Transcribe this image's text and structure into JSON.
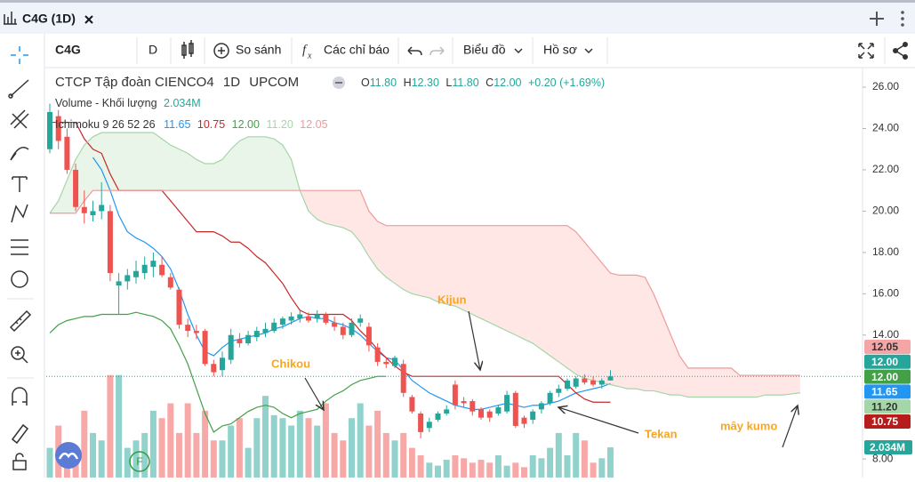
{
  "tab": {
    "title": "C4G (1D)"
  },
  "toolbar": {
    "symbol": "C4G",
    "interval": "D",
    "compare": "So sánh",
    "indicators": "Các chỉ báo",
    "chart_type": "Biểu đồ",
    "profile": "Hồ sơ"
  },
  "legend": {
    "name": "CTCP Tập đoàn CIENCO4",
    "interval": "1D",
    "exchange": "UPCOM",
    "o_label": "O",
    "open": "11.80",
    "h_label": "H",
    "high": "12.30",
    "l_label": "L",
    "low": "11.80",
    "c_label": "C",
    "close": "12.00",
    "change": "+0.20 (+1.69%)",
    "volume_name": "Volume - Khối lượng",
    "volume_value": "2.034M",
    "ichimoku_name": "Ichimoku 9 26 52 26",
    "ichimoku_values": [
      "11.65",
      "10.75",
      "12.00",
      "11.20",
      "12.05"
    ]
  },
  "badge": "F",
  "chart_data": {
    "type": "candlestick",
    "ylim": [
      7.1,
      26.95
    ],
    "yticks": [
      {
        "value": 8,
        "label": "8.00"
      },
      {
        "value": 14,
        "label": "14.00"
      },
      {
        "value": 16,
        "label": "16.00"
      },
      {
        "value": 18,
        "label": "18.00"
      },
      {
        "value": 20,
        "label": "20.00"
      },
      {
        "value": 22,
        "label": "22.00"
      },
      {
        "value": 24,
        "label": "24.00"
      },
      {
        "value": 26,
        "label": "26.00"
      }
    ],
    "colors": {
      "up": "#26a69a",
      "down": "#ef5350"
    },
    "candles": [
      [
        23.0,
        25.2,
        22.8,
        24.8
      ],
      [
        24.6,
        24.9,
        23.0,
        23.4
      ],
      [
        23.6,
        24.0,
        21.8,
        22.0
      ],
      [
        22.0,
        22.3,
        20.0,
        20.2
      ],
      [
        20.2,
        21.0,
        19.4,
        19.9
      ],
      [
        19.8,
        20.5,
        19.5,
        20.0
      ],
      [
        20.0,
        21.4,
        19.6,
        20.3
      ],
      [
        20.0,
        20.3,
        16.6,
        17.0
      ],
      [
        16.4,
        17.0,
        15.0,
        16.6
      ],
      [
        16.6,
        17.2,
        16.2,
        16.9
      ],
      [
        16.8,
        17.6,
        16.5,
        17.1
      ],
      [
        17.0,
        17.8,
        16.7,
        17.4
      ],
      [
        17.3,
        18.0,
        16.8,
        17.6
      ],
      [
        17.4,
        17.8,
        16.8,
        16.9
      ],
      [
        16.8,
        17.0,
        16.2,
        16.3
      ],
      [
        16.2,
        16.3,
        14.3,
        14.5
      ],
      [
        14.5,
        14.8,
        13.9,
        14.2
      ],
      [
        14.2,
        14.5,
        13.8,
        14.1
      ],
      [
        14.2,
        14.3,
        12.5,
        12.6
      ],
      [
        12.6,
        12.8,
        12.0,
        12.2
      ],
      [
        12.3,
        13.2,
        12.0,
        12.9
      ],
      [
        12.8,
        14.3,
        12.6,
        14.0
      ],
      [
        13.8,
        14.1,
        13.4,
        13.6
      ],
      [
        13.6,
        14.2,
        13.5,
        14.0
      ],
      [
        13.9,
        14.4,
        13.7,
        14.2
      ],
      [
        14.1,
        14.6,
        13.9,
        14.3
      ],
      [
        14.2,
        14.8,
        14.1,
        14.6
      ],
      [
        14.5,
        14.9,
        14.3,
        14.8
      ],
      [
        14.7,
        15.1,
        14.5,
        14.9
      ],
      [
        14.8,
        15.2,
        14.6,
        15.0
      ],
      [
        14.9,
        15.1,
        14.6,
        14.7
      ],
      [
        14.8,
        15.2,
        14.6,
        15.0
      ],
      [
        15.0,
        15.1,
        14.5,
        14.6
      ],
      [
        14.6,
        14.9,
        14.2,
        14.4
      ],
      [
        14.4,
        14.6,
        13.8,
        14.0
      ],
      [
        14.0,
        14.8,
        13.9,
        14.6
      ],
      [
        14.6,
        15.0,
        14.4,
        14.8
      ],
      [
        14.4,
        14.6,
        13.2,
        13.5
      ],
      [
        13.4,
        13.6,
        12.5,
        12.7
      ],
      [
        12.7,
        12.9,
        12.4,
        12.6
      ],
      [
        12.5,
        13.0,
        12.4,
        12.9
      ],
      [
        12.6,
        12.8,
        11.0,
        11.2
      ],
      [
        11.0,
        11.1,
        10.2,
        10.3
      ],
      [
        10.2,
        10.3,
        9.0,
        9.3
      ],
      [
        9.5,
        10.0,
        9.3,
        9.8
      ],
      [
        9.9,
        10.3,
        9.8,
        10.2
      ],
      [
        10.2,
        10.6,
        10.1,
        10.4
      ],
      [
        11.6,
        11.8,
        10.4,
        10.6
      ],
      [
        10.8,
        11.0,
        10.5,
        10.7
      ],
      [
        10.8,
        10.9,
        10.1,
        10.3
      ],
      [
        10.4,
        10.5,
        9.9,
        10.0
      ],
      [
        10.3,
        10.4,
        9.8,
        10.0
      ],
      [
        10.2,
        10.6,
        10.1,
        10.5
      ],
      [
        10.3,
        11.3,
        10.2,
        11.1
      ],
      [
        11.2,
        11.3,
        9.5,
        9.6
      ],
      [
        10.0,
        10.1,
        9.5,
        9.7
      ],
      [
        9.9,
        10.4,
        9.7,
        10.3
      ],
      [
        10.4,
        10.8,
        10.2,
        10.7
      ],
      [
        10.7,
        11.3,
        10.6,
        11.2
      ],
      [
        11.2,
        11.6,
        11.0,
        11.4
      ],
      [
        11.4,
        11.9,
        11.3,
        11.8
      ],
      [
        11.5,
        12.0,
        11.4,
        11.9
      ],
      [
        11.9,
        12.1,
        11.6,
        11.7
      ],
      [
        11.8,
        12.0,
        11.5,
        11.6
      ],
      [
        11.6,
        11.9,
        11.4,
        11.8
      ],
      [
        11.8,
        12.3,
        11.8,
        12.0
      ]
    ],
    "volume": [
      2,
      3.5,
      1.5,
      2,
      4.5,
      3,
      2.5,
      6.9,
      6.9,
      2,
      2.5,
      3,
      4.5,
      4,
      5,
      3,
      5,
      3,
      4.5,
      2.5,
      2.5,
      3.5,
      4,
      2,
      4,
      5.5,
      4.2,
      4,
      3.5,
      4.5,
      4,
      3.5,
      5,
      3,
      2.5,
      4,
      5,
      3.5,
      4.5,
      3,
      2.5,
      3,
      2,
      1.5,
      1,
      0.8,
      1.2,
      1.5,
      1.3,
      1,
      1.2,
      1,
      1.5,
      0.8,
      1,
      0.7,
      1.5,
      1.3,
      2,
      3,
      1.5,
      3,
      2.5,
      1,
      1.3,
      2.034
    ],
    "ichimoku": [
      {
        "color": "#2196f3",
        "values": [
          null,
          null,
          null,
          null,
          null,
          22.6,
          22.0,
          21.0,
          19.8,
          19.0,
          18.7,
          18.5,
          18.2,
          17.8,
          17.2,
          16.2,
          15.0,
          14.0,
          13.2,
          13.0,
          13.4,
          13.7,
          13.8,
          13.9,
          14.0,
          14.1,
          14.3,
          14.4,
          14.6,
          14.8,
          14.9,
          14.8,
          14.8,
          14.6,
          14.5,
          14.3,
          14.0,
          13.6,
          13.2,
          12.9,
          12.8,
          12.3,
          11.8,
          11.5,
          11.2,
          11.0,
          10.8,
          10.6,
          10.5,
          10.4,
          10.4,
          10.5,
          10.6,
          10.7,
          10.6,
          10.5,
          10.6,
          10.6,
          10.7,
          10.8,
          11.0,
          11.2,
          11.3,
          11.4,
          11.5,
          11.65
        ]
      },
      {
        "color": "#c62828",
        "values": [
          24.3,
          24.3,
          24.3,
          24.3,
          23.5,
          23.0,
          22.8,
          21.8,
          21.0,
          21.0,
          21.0,
          21.0,
          21.0,
          21.0,
          20.5,
          20.0,
          19.5,
          19.0,
          19.0,
          19.0,
          18.8,
          18.5,
          18.5,
          18.2,
          17.8,
          17.5,
          17.0,
          16.5,
          15.8,
          15.2,
          15.0,
          15.0,
          15.0,
          15.0,
          15.0,
          14.7,
          14.2,
          13.8,
          13.3,
          12.9,
          12.5,
          12.2,
          12.0,
          12.0,
          12.0,
          12.0,
          12.0,
          12.0,
          12.0,
          12.0,
          12.0,
          12.0,
          12.0,
          12.0,
          12.0,
          12.0,
          12.0,
          12.0,
          12.0,
          12.0,
          11.6,
          11.2,
          10.9,
          10.75,
          10.75,
          10.75
        ]
      },
      {
        "color": "#43a047",
        "values": [
          14.1,
          14.5,
          14.7,
          14.8,
          14.9,
          14.9,
          15.0,
          15.0,
          15.0,
          15.0,
          15.1,
          15.0,
          14.9,
          14.7,
          14.3,
          13.5,
          12.6,
          11.4,
          10.2,
          9.3,
          9.6,
          9.7,
          10.0,
          10.3,
          10.5,
          10.6,
          10.5,
          10.2,
          10.0,
          10.2,
          10.3,
          10.4,
          10.8,
          11.1,
          11.3,
          11.6,
          11.8,
          11.9,
          12.0,
          12.0
        ]
      },
      {
        "color": "#a5d6a7",
        "values": [
          19.9,
          20.5,
          21.5,
          22.5,
          23.2,
          23.6,
          23.8,
          23.8,
          23.8,
          23.8,
          23.8,
          23.8,
          23.8,
          23.5,
          23.2,
          23.0,
          22.8,
          22.5,
          22.3,
          22.3,
          22.5,
          23.0,
          23.4,
          23.6,
          23.6,
          23.6,
          23.5,
          23.2,
          22.5,
          21.0,
          20.0,
          19.6,
          19.4,
          19.3,
          19.2,
          19.0,
          18.5,
          17.8,
          17.2,
          16.8,
          16.5,
          16.2,
          16.0,
          15.9,
          15.8,
          15.6,
          15.5,
          15.4,
          15.2,
          15.0,
          14.8,
          14.6,
          14.4,
          14.2,
          14.0,
          13.8,
          13.6,
          13.3,
          13.0,
          12.7,
          12.4,
          12.1,
          11.9,
          11.8,
          11.7,
          11.6,
          11.5,
          11.4,
          11.4,
          11.3,
          11.3,
          11.2,
          11.1,
          11.1,
          11.0,
          11.0,
          11.0,
          11.0,
          11.0,
          11.0,
          11.0,
          11.0,
          11.0,
          11.1,
          11.1,
          11.1,
          11.15,
          11.2
        ]
      },
      {
        "color": "#ef9a9a",
        "values": [
          19.9,
          19.9,
          19.9,
          19.9,
          20.5,
          21.0,
          21.0,
          21.0,
          21.0,
          21.0,
          21.0,
          21.0,
          21.0,
          21.0,
          21.0,
          21.0,
          21.0,
          21.0,
          21.0,
          21.0,
          21.0,
          21.0,
          21.0,
          21.0,
          21.0,
          21.0,
          21.0,
          21.0,
          21.0,
          21.0,
          21.0,
          21.0,
          21.0,
          21.0,
          21.0,
          21.0,
          21.0,
          20.0,
          19.5,
          19.3,
          19.3,
          19.3,
          19.3,
          19.3,
          19.3,
          19.3,
          19.3,
          19.3,
          19.3,
          19.3,
          19.3,
          19.3,
          19.3,
          19.3,
          19.3,
          19.3,
          19.3,
          19.3,
          19.3,
          19.3,
          19.3,
          19.0,
          18.5,
          18.0,
          17.5,
          17.0,
          16.9,
          16.9,
          16.9,
          16.8,
          16.0,
          15.0,
          14.0,
          13.0,
          12.4,
          12.4,
          12.4,
          12.4,
          12.4,
          12.4,
          12.05,
          12.05,
          12.05,
          12.05,
          12.05,
          12.05,
          12.05,
          12.05
        ]
      }
    ],
    "price_labels": [
      {
        "value": 12.05,
        "label": "12.05",
        "color": "#f4a6a6",
        "text_color": "#333"
      },
      {
        "value": 12.0,
        "label": "12.00",
        "color": "#26a69a",
        "text_color": "#fff"
      },
      {
        "value": 12.0,
        "label": "12.00",
        "color": "#43a047",
        "text_color": "#fff"
      },
      {
        "value": 11.65,
        "label": "11.65",
        "color": "#2196f3",
        "text_color": "#fff"
      },
      {
        "value": 11.2,
        "label": "11.20",
        "color": "#a5d6a7",
        "text_color": "#333"
      },
      {
        "value": 10.75,
        "label": "10.75",
        "color": "#b71c1c",
        "text_color": "#fff"
      }
    ],
    "volume_label": {
      "value": 2.034,
      "label": "2.034M",
      "color": "#26a69a"
    },
    "annotations": [
      "Kijun",
      "Chikou",
      "Tekan",
      "mây kumo"
    ]
  }
}
